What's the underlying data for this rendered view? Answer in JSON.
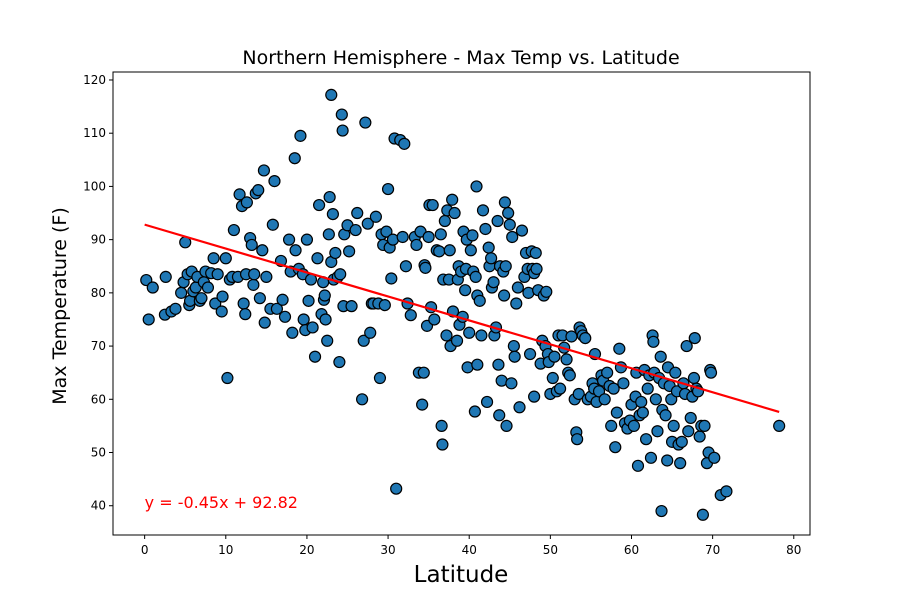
{
  "chart_data": {
    "type": "scatter",
    "title": "Northern Hemisphere - Max Temp vs. Latitude",
    "xlabel": "Latitude",
    "ylabel": "Max Temperature (F)",
    "xlim": [
      -3.9,
      82
    ],
    "ylim": [
      34.5,
      121.5
    ],
    "xticks": [
      0,
      10,
      20,
      30,
      40,
      50,
      60,
      70,
      80
    ],
    "yticks": [
      40,
      50,
      60,
      70,
      80,
      90,
      100,
      110,
      120
    ],
    "grid": false,
    "point_color": "#1f77b4",
    "regression": {
      "slope": -0.45,
      "intercept": 92.82,
      "x_range": [
        0,
        78.2
      ],
      "color": "#ff0000",
      "equation": "y = -0.45x + 92.82",
      "label_position": [
        0,
        40.5
      ]
    },
    "points": [
      [
        0.2,
        82.4
      ],
      [
        0.5,
        75
      ],
      [
        1,
        81
      ],
      [
        2.5,
        75.9
      ],
      [
        2.6,
        83
      ],
      [
        3.3,
        76.5
      ],
      [
        3.8,
        77
      ],
      [
        4.5,
        80
      ],
      [
        4.8,
        82
      ],
      [
        5,
        89.5
      ],
      [
        5.3,
        83.5
      ],
      [
        5.5,
        77.7
      ],
      [
        5.6,
        78.5
      ],
      [
        5.8,
        84
      ],
      [
        6,
        80.3
      ],
      [
        6.3,
        81
      ],
      [
        6.5,
        83
      ],
      [
        6.8,
        78.5
      ],
      [
        7,
        79
      ],
      [
        7.3,
        82
      ],
      [
        7.5,
        84
      ],
      [
        7.8,
        81
      ],
      [
        8.2,
        83.7
      ],
      [
        8.5,
        86.5
      ],
      [
        8.7,
        78
      ],
      [
        9,
        83.5
      ],
      [
        9.5,
        76.5
      ],
      [
        9.6,
        79.3
      ],
      [
        10,
        86.5
      ],
      [
        10.2,
        64
      ],
      [
        10.5,
        82.5
      ],
      [
        10.8,
        83
      ],
      [
        11,
        91.8
      ],
      [
        11.5,
        83
      ],
      [
        11.7,
        98.5
      ],
      [
        12,
        96.3
      ],
      [
        12.2,
        78
      ],
      [
        12.4,
        76
      ],
      [
        12.5,
        83.5
      ],
      [
        12.6,
        97
      ],
      [
        13,
        90.3
      ],
      [
        13.2,
        89
      ],
      [
        13.4,
        81.5
      ],
      [
        13.5,
        83.5
      ],
      [
        13.7,
        98.7
      ],
      [
        14,
        99.3
      ],
      [
        14.2,
        79
      ],
      [
        14.5,
        88
      ],
      [
        14.7,
        103
      ],
      [
        14.8,
        74.4
      ],
      [
        15,
        83
      ],
      [
        15.5,
        77
      ],
      [
        15.8,
        92.8
      ],
      [
        16,
        101
      ],
      [
        16.3,
        77
      ],
      [
        16.8,
        86
      ],
      [
        17,
        78.7
      ],
      [
        17.3,
        75.5
      ],
      [
        17.8,
        90
      ],
      [
        18,
        84
      ],
      [
        18.2,
        72.5
      ],
      [
        18.5,
        105.3
      ],
      [
        18.6,
        88
      ],
      [
        19,
        84.5
      ],
      [
        19.2,
        109.5
      ],
      [
        19.5,
        83.5
      ],
      [
        19.6,
        75
      ],
      [
        19.8,
        73
      ],
      [
        20,
        90
      ],
      [
        20.2,
        78.5
      ],
      [
        20.5,
        82.5
      ],
      [
        20.7,
        73.5
      ],
      [
        21,
        68
      ],
      [
        21.3,
        86.5
      ],
      [
        21.5,
        96.5
      ],
      [
        21.8,
        76
      ],
      [
        22,
        82
      ],
      [
        22.1,
        78.7
      ],
      [
        22.2,
        79.5
      ],
      [
        22.3,
        75
      ],
      [
        22.5,
        71
      ],
      [
        22.7,
        91
      ],
      [
        22.8,
        98
      ],
      [
        23,
        85.8
      ],
      [
        23,
        117.2
      ],
      [
        23.2,
        94.8
      ],
      [
        23.3,
        82.5
      ],
      [
        23.5,
        87.5
      ],
      [
        23.8,
        83
      ],
      [
        24,
        67
      ],
      [
        24.1,
        83.5
      ],
      [
        24.3,
        113.5
      ],
      [
        24.4,
        110.5
      ],
      [
        24.5,
        77.5
      ],
      [
        24.6,
        91
      ],
      [
        25,
        92.7
      ],
      [
        25.2,
        87.8
      ],
      [
        25.5,
        77.5
      ],
      [
        26,
        91.8
      ],
      [
        26.2,
        95
      ],
      [
        26.8,
        60
      ],
      [
        27,
        71
      ],
      [
        27.2,
        112
      ],
      [
        27.5,
        93
      ],
      [
        27.8,
        72.5
      ],
      [
        28,
        78
      ],
      [
        28.2,
        78
      ],
      [
        28.5,
        94.3
      ],
      [
        28.8,
        78
      ],
      [
        29,
        64
      ],
      [
        29.2,
        91
      ],
      [
        29.4,
        89
      ],
      [
        29.6,
        77.7
      ],
      [
        29.8,
        91.5
      ],
      [
        30,
        99.5
      ],
      [
        30.2,
        88.5
      ],
      [
        30.4,
        82.7
      ],
      [
        30.6,
        90
      ],
      [
        30.8,
        109
      ],
      [
        31,
        43.2
      ],
      [
        31.5,
        108.7
      ],
      [
        31.8,
        90.5
      ],
      [
        32,
        108
      ],
      [
        32.2,
        85
      ],
      [
        32.4,
        78
      ],
      [
        32.8,
        75.8
      ],
      [
        33.3,
        90.5
      ],
      [
        33.5,
        89
      ],
      [
        33.8,
        65
      ],
      [
        34,
        91.5
      ],
      [
        34.2,
        59
      ],
      [
        34.4,
        65
      ],
      [
        34.5,
        85.2
      ],
      [
        34.6,
        84.7
      ],
      [
        34.8,
        73.8
      ],
      [
        35,
        90.5
      ],
      [
        35.1,
        96.5
      ],
      [
        35.3,
        77.3
      ],
      [
        35.5,
        96.5
      ],
      [
        35.7,
        75
      ],
      [
        36,
        88
      ],
      [
        36.3,
        87.8
      ],
      [
        36.5,
        91
      ],
      [
        36.6,
        55
      ],
      [
        36.7,
        51.5
      ],
      [
        36.8,
        82.5
      ],
      [
        37,
        93.5
      ],
      [
        37.2,
        72
      ],
      [
        37.3,
        95.5
      ],
      [
        37.5,
        82.5
      ],
      [
        37.6,
        88
      ],
      [
        37.7,
        70
      ],
      [
        37.9,
        97.5
      ],
      [
        38,
        76.5
      ],
      [
        38.2,
        95
      ],
      [
        38.5,
        71
      ],
      [
        38.6,
        82.5
      ],
      [
        38.7,
        85
      ],
      [
        38.8,
        74
      ],
      [
        39,
        84
      ],
      [
        39.2,
        75.5
      ],
      [
        39.3,
        91.5
      ],
      [
        39.5,
        80.5
      ],
      [
        39.6,
        84.5
      ],
      [
        39.7,
        90
      ],
      [
        39.8,
        66
      ],
      [
        40,
        72.5
      ],
      [
        40.2,
        88
      ],
      [
        40.4,
        90.8
      ],
      [
        40.5,
        84
      ],
      [
        40.7,
        57.7
      ],
      [
        40.8,
        83
      ],
      [
        40.9,
        100
      ],
      [
        41,
        79.5
      ],
      [
        41,
        66.5
      ],
      [
        41.3,
        78.5
      ],
      [
        41.5,
        72
      ],
      [
        41.7,
        95.5
      ],
      [
        42,
        92
      ],
      [
        42.2,
        59.5
      ],
      [
        42.4,
        88.5
      ],
      [
        42.5,
        85
      ],
      [
        42.7,
        86.5
      ],
      [
        42.8,
        81
      ],
      [
        43,
        82
      ],
      [
        43.1,
        72
      ],
      [
        43.3,
        73.5
      ],
      [
        43.5,
        93.5
      ],
      [
        43.6,
        66.5
      ],
      [
        43.7,
        57
      ],
      [
        43.8,
        85
      ],
      [
        44,
        63.5
      ],
      [
        44.2,
        84
      ],
      [
        44.3,
        79.5
      ],
      [
        44.4,
        97
      ],
      [
        44.5,
        85
      ],
      [
        44.6,
        55
      ],
      [
        44.8,
        95
      ],
      [
        45,
        92.8
      ],
      [
        45.2,
        63
      ],
      [
        45.3,
        90.5
      ],
      [
        45.5,
        70
      ],
      [
        45.6,
        68
      ],
      [
        45.8,
        78
      ],
      [
        46,
        81
      ],
      [
        46.2,
        58.5
      ],
      [
        46.5,
        91.7
      ],
      [
        46.8,
        83
      ],
      [
        47,
        87.5
      ],
      [
        47.2,
        84.5
      ],
      [
        47.3,
        80
      ],
      [
        47.5,
        68.5
      ],
      [
        47.7,
        87.8
      ],
      [
        47.8,
        84.5
      ],
      [
        48,
        60.5
      ],
      [
        48,
        83.7
      ],
      [
        48.2,
        87.5
      ],
      [
        48.3,
        84.5
      ],
      [
        48.5,
        80.5
      ],
      [
        48.8,
        66.7
      ],
      [
        49,
        71
      ],
      [
        49.2,
        79.5
      ],
      [
        49.4,
        70
      ],
      [
        49.5,
        80.2
      ],
      [
        49.7,
        68.5
      ],
      [
        49.8,
        67
      ],
      [
        50,
        61
      ],
      [
        50.3,
        64
      ],
      [
        50.5,
        68
      ],
      [
        50.8,
        61.5
      ],
      [
        51,
        72
      ],
      [
        51.2,
        62
      ],
      [
        51.5,
        72
      ],
      [
        51.7,
        69.7
      ],
      [
        52,
        67.5
      ],
      [
        52.2,
        65
      ],
      [
        52.4,
        64.5
      ],
      [
        52.6,
        71.8
      ],
      [
        53,
        60
      ],
      [
        53.2,
        53.8
      ],
      [
        53.3,
        52.5
      ],
      [
        53.5,
        61
      ],
      [
        53.6,
        73.5
      ],
      [
        53.8,
        72.8
      ],
      [
        54,
        72
      ],
      [
        54.3,
        71.5
      ],
      [
        54.6,
        60
      ],
      [
        55,
        60.5
      ],
      [
        55.2,
        63
      ],
      [
        55.4,
        62
      ],
      [
        55.5,
        68.5
      ],
      [
        55.7,
        59.5
      ],
      [
        56,
        61.5
      ],
      [
        56.3,
        64.5
      ],
      [
        56.5,
        63.5
      ],
      [
        56.7,
        60
      ],
      [
        57,
        65
      ],
      [
        57.3,
        62.5
      ],
      [
        57.5,
        55
      ],
      [
        57.8,
        62
      ],
      [
        58,
        51
      ],
      [
        58.2,
        57.5
      ],
      [
        58.5,
        69.5
      ],
      [
        58.7,
        66
      ],
      [
        59,
        63
      ],
      [
        59.2,
        55.5
      ],
      [
        59.5,
        54.5
      ],
      [
        59.8,
        56
      ],
      [
        60,
        59
      ],
      [
        60.3,
        55
      ],
      [
        60.5,
        60.5
      ],
      [
        60.6,
        65
      ],
      [
        60.8,
        47.5
      ],
      [
        61,
        57
      ],
      [
        61.2,
        59.5
      ],
      [
        61.4,
        57.5
      ],
      [
        61.6,
        65.5
      ],
      [
        61.8,
        52.5
      ],
      [
        62,
        62
      ],
      [
        62.2,
        64.5
      ],
      [
        62.4,
        49
      ],
      [
        62.6,
        72
      ],
      [
        62.7,
        70.8
      ],
      [
        62.8,
        65
      ],
      [
        63,
        60
      ],
      [
        63.2,
        54
      ],
      [
        63.4,
        64
      ],
      [
        63.6,
        68
      ],
      [
        63.7,
        39
      ],
      [
        63.8,
        58
      ],
      [
        64,
        63
      ],
      [
        64.2,
        57
      ],
      [
        64.4,
        48.5
      ],
      [
        64.5,
        66
      ],
      [
        64.7,
        62.5
      ],
      [
        64.9,
        60
      ],
      [
        65,
        52
      ],
      [
        65.2,
        55
      ],
      [
        65.4,
        65
      ],
      [
        65.6,
        61.5
      ],
      [
        65.8,
        51.5
      ],
      [
        66,
        48
      ],
      [
        66.2,
        52
      ],
      [
        66.4,
        63
      ],
      [
        66.6,
        61
      ],
      [
        66.8,
        70
      ],
      [
        67,
        54
      ],
      [
        67.3,
        56.5
      ],
      [
        67.5,
        60.5
      ],
      [
        67.7,
        64
      ],
      [
        67.8,
        71.5
      ],
      [
        68,
        62
      ],
      [
        68.2,
        61.5
      ],
      [
        68.4,
        53
      ],
      [
        68.6,
        55
      ],
      [
        68.8,
        38.3
      ],
      [
        69,
        55
      ],
      [
        69.3,
        48
      ],
      [
        69.5,
        50
      ],
      [
        69.7,
        65.5
      ],
      [
        69.8,
        65
      ],
      [
        70.2,
        49
      ],
      [
        71,
        42
      ],
      [
        71.7,
        42.7
      ],
      [
        78.2,
        55
      ]
    ]
  }
}
